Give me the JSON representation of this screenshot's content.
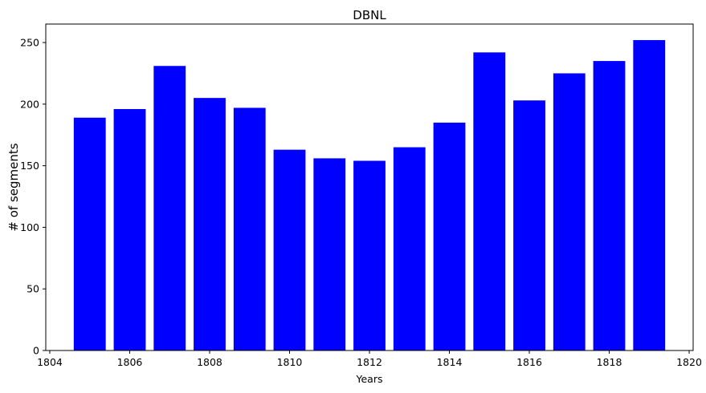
{
  "chart_data": {
    "type": "bar",
    "title": "DBNL",
    "xlabel": "Years",
    "ylabel": "# of segments",
    "x": [
      1805,
      1806,
      1807,
      1808,
      1809,
      1810,
      1811,
      1812,
      1813,
      1814,
      1815,
      1816,
      1817,
      1818,
      1819
    ],
    "values": [
      189,
      196,
      231,
      205,
      197,
      163,
      156,
      154,
      165,
      185,
      242,
      203,
      225,
      235,
      252
    ],
    "xlim": [
      1803.9,
      1820.1
    ],
    "ylim": [
      0,
      265
    ],
    "xticks": [
      1804,
      1806,
      1808,
      1810,
      1812,
      1814,
      1816,
      1818,
      1820
    ],
    "yticks": [
      0,
      50,
      100,
      150,
      200,
      250
    ],
    "bar_width": 0.8,
    "bar_color": "#0000ff",
    "grid": false,
    "legend": "none"
  }
}
